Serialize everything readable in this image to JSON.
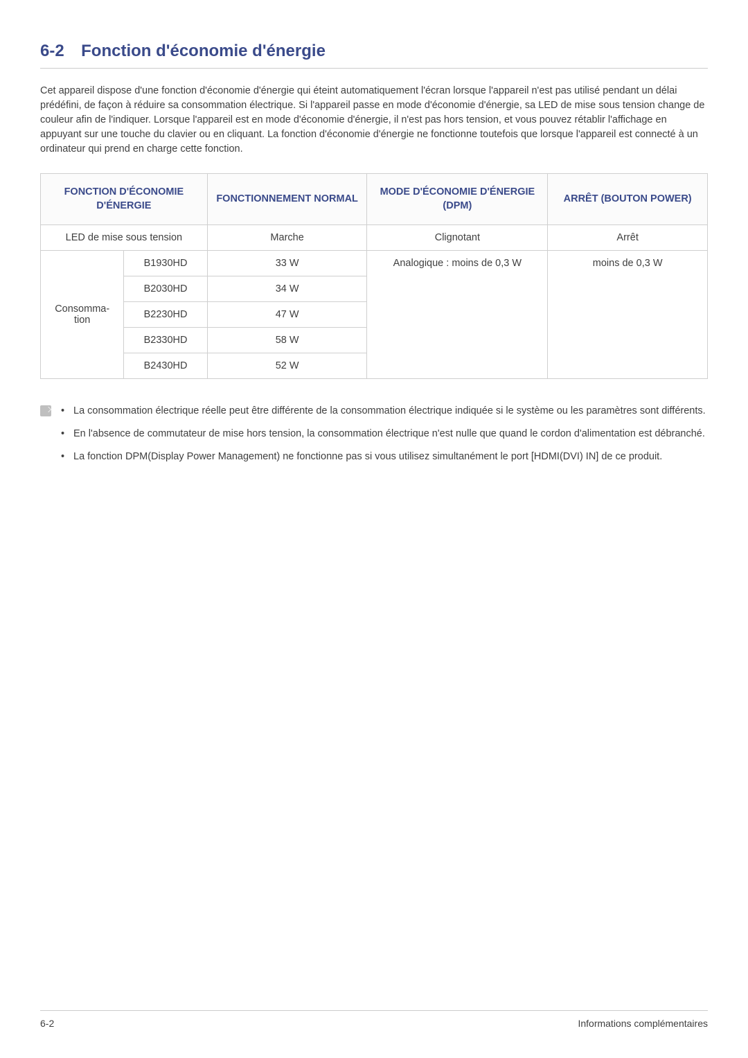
{
  "heading": {
    "number": "6-2",
    "title": "Fonction d'économie d'énergie"
  },
  "intro": "Cet appareil dispose d'une fonction d'économie d'énergie qui éteint automatiquement l'écran lorsque l'appareil n'est pas utilisé pendant un délai prédéfini, de façon à réduire sa consommation électrique. Si l'appareil passe en mode d'économie d'énergie, sa LED de mise sous tension change de couleur afin de l'indiquer. Lorsque l'appareil est en mode d'économie d'énergie, il n'est pas hors tension, et vous pouvez rétablir l'affichage en appuyant sur une touche du clavier ou en cliquant. La fonction d'économie d'énergie ne fonctionne toutefois que lorsque l'appareil est connecté à un ordinateur qui prend en charge cette fonction.",
  "table": {
    "headers": {
      "col1": "FONCTION D'ÉCONOMIE D'ÉNERGIE",
      "col2": "FONCTIONNEMENT NORMAL",
      "col3": "MODE D'ÉCONOMIE D'ÉNERGIE (DPM)",
      "col4": "ARRÊT (BOUTON POWER)"
    },
    "row_led": {
      "label": "LED de mise sous tension",
      "normal": "Marche",
      "dpm": "Clignotant",
      "off": "Arrêt"
    },
    "row_consumption": {
      "label": "Consomma-tion",
      "models": {
        "m0": {
          "name": "B1930HD",
          "watts": "33 W"
        },
        "m1": {
          "name": "B2030HD",
          "watts": "34 W"
        },
        "m2": {
          "name": "B2230HD",
          "watts": "47 W"
        },
        "m3": {
          "name": "B2330HD",
          "watts": "58 W"
        },
        "m4": {
          "name": "B2430HD",
          "watts": "52 W"
        }
      },
      "dpm": "Analogique : moins de 0,3 W",
      "off": "moins de 0,3 W"
    }
  },
  "notes": {
    "n0": "La consommation électrique réelle peut être différente de la consommation électrique indiquée si le système ou les paramètres sont différents.",
    "n1": "En l'absence de commutateur de mise hors tension, la consommation électrique n'est nulle que quand le cordon d'alimentation est débranché.",
    "n2": "La fonction DPM(Display Power Management) ne fonctionne pas si vous utilisez simultanément le port [HDMI(DVI) IN] de ce produit."
  },
  "footer": {
    "left": "6-2",
    "right": "Informations complémentaires"
  }
}
